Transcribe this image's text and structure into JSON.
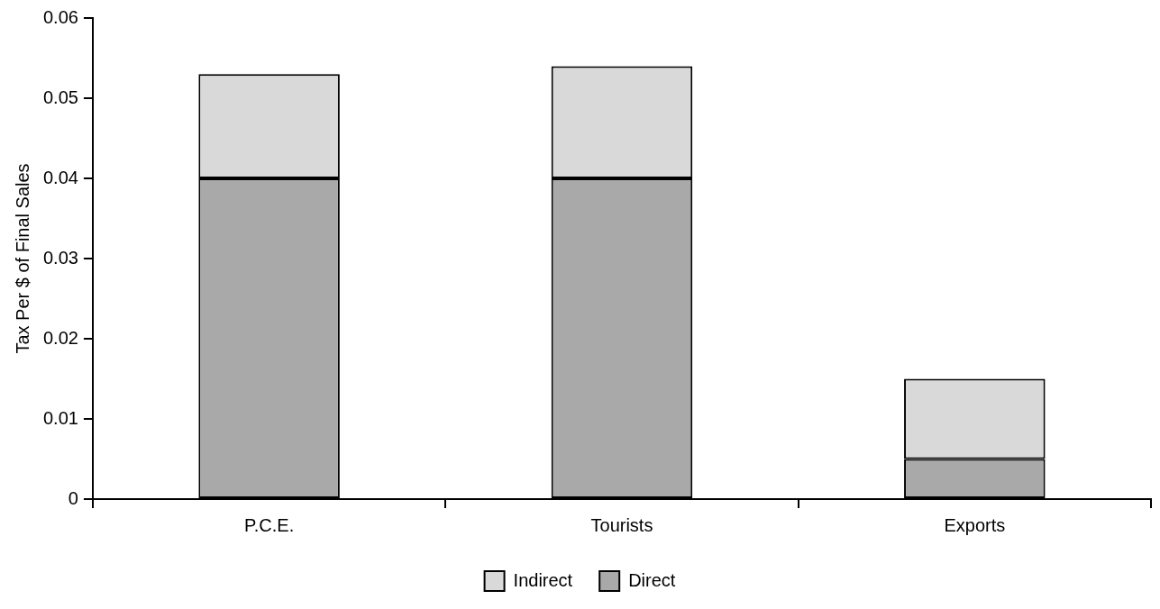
{
  "chart_data": {
    "type": "bar",
    "ylabel": "Tax Per $ of Final Sales",
    "categories": [
      "P.C.E.",
      "Tourists",
      "Exports"
    ],
    "stacked": true,
    "series": [
      {
        "name": "Direct",
        "color": "#a9a9a9",
        "values": [
          0.04,
          0.04,
          0.005
        ]
      },
      {
        "name": "Indirect",
        "color": "#d9d9d9",
        "values": [
          0.013,
          0.014,
          0.01
        ]
      }
    ],
    "ylim": [
      0,
      0.06
    ],
    "yticks": [
      0,
      0.01,
      0.02,
      0.03,
      0.04,
      0.05,
      0.06
    ],
    "grid": false,
    "legend": "bottom"
  }
}
